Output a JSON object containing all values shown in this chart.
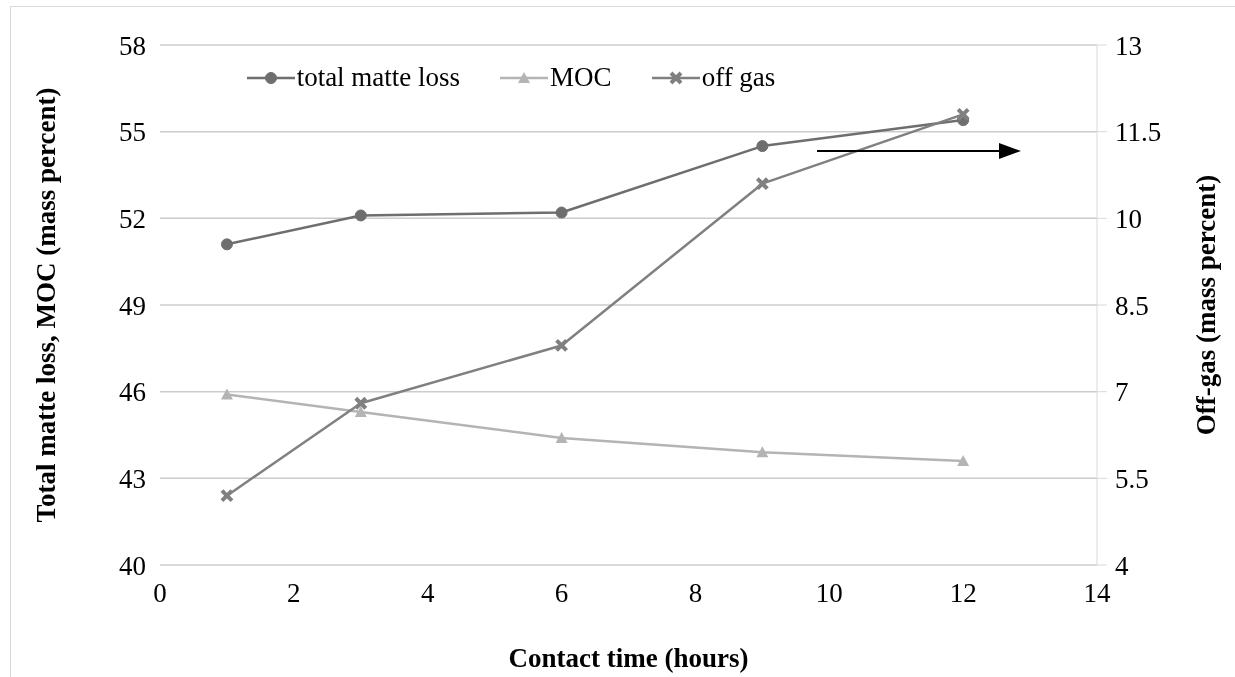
{
  "chart_data": {
    "type": "line",
    "xlabel": "Contact time (hours)",
    "ylabel": "Total matte loss, MOC (mass percent)",
    "y2label": "Off-gas (mass percent)",
    "x": [
      1,
      3,
      6,
      9,
      12
    ],
    "series": [
      {
        "name": "total matte loss",
        "color": "#6e6e6e",
        "marker": "circle",
        "values": [
          51.1,
          52.1,
          52.2,
          54.5,
          55.4
        ]
      },
      {
        "name": "MOC",
        "color": "#b4b4b4",
        "marker": "triangle",
        "values": [
          45.9,
          45.3,
          44.4,
          43.9,
          43.6
        ]
      },
      {
        "name": "off gas",
        "color": "#808080",
        "marker": "cross",
        "axis": "y2",
        "values": [
          5.2,
          6.8,
          7.8,
          10.6,
          11.8
        ]
      }
    ],
    "xlim": [
      0,
      14
    ],
    "xticks": [
      0,
      2,
      4,
      6,
      8,
      10,
      12,
      14
    ],
    "ylim": [
      40,
      58
    ],
    "yticks": [
      40,
      43,
      46,
      49,
      52,
      55,
      58
    ],
    "y2lim": [
      4,
      13
    ],
    "y2ticks": [
      4,
      5.5,
      7,
      8.5,
      10,
      11.5,
      13
    ],
    "grid": "y",
    "legend": "top",
    "line_style": "solid"
  }
}
